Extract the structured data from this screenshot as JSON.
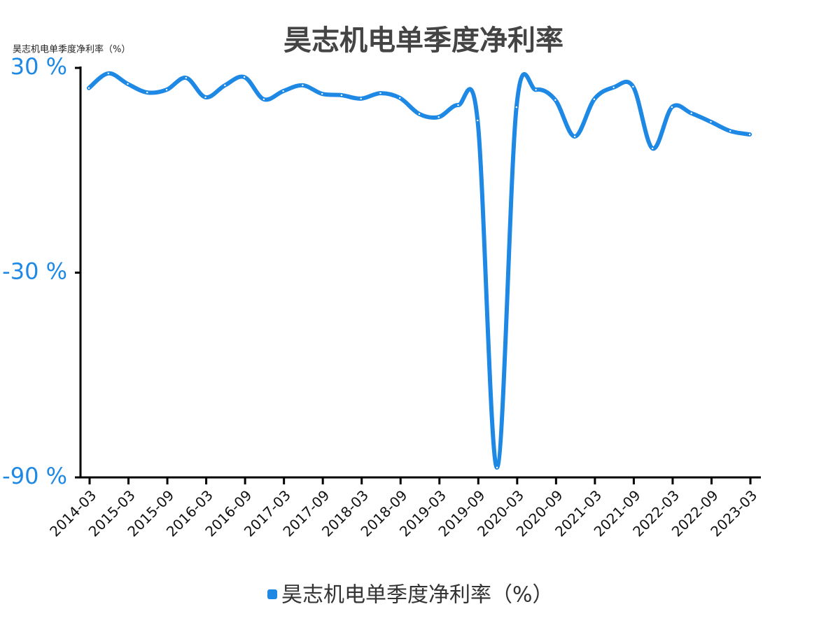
{
  "chart_data": {
    "type": "line",
    "title": "昊志机电单季度净利率",
    "y_label": "昊志机电单季度净利率（%）",
    "categories": [
      "2014-03",
      null,
      "2015-03",
      null,
      "2015-09",
      null,
      "2016-03",
      null,
      "2016-09",
      null,
      "2017-03",
      null,
      "2017-09",
      null,
      "2018-03",
      null,
      "2018-09",
      null,
      "2019-03",
      null,
      "2019-09",
      null,
      "2020-03",
      null,
      "2020-09",
      null,
      "2021-03",
      null,
      "2021-09",
      null,
      "2022-03",
      null,
      "2022-09",
      null,
      "2023-03"
    ],
    "series": [
      {
        "name": "昊志机电单季度净利率（%）",
        "color": "#1e88e5",
        "values": [
          24.1,
          28.4,
          25.3,
          22.8,
          23.6,
          27.1,
          21.4,
          24.9,
          27.3,
          20.8,
          23.2,
          24.9,
          22.4,
          22.0,
          21.0,
          22.6,
          21.2,
          16.5,
          15.6,
          19.1,
          14.6,
          -87.1,
          18.5,
          23.6,
          20.6,
          9.9,
          20.8,
          24.3,
          24.5,
          6.4,
          18.5,
          16.7,
          14.2,
          11.5,
          10.5
        ]
      }
    ],
    "ylim": [
      -90,
      30
    ],
    "yticks": [
      {
        "value": 30,
        "label": "30 %"
      },
      {
        "value": -30,
        "label": "-30 %"
      },
      {
        "value": -90,
        "label": "-90 %"
      }
    ],
    "legend": "bottom"
  }
}
